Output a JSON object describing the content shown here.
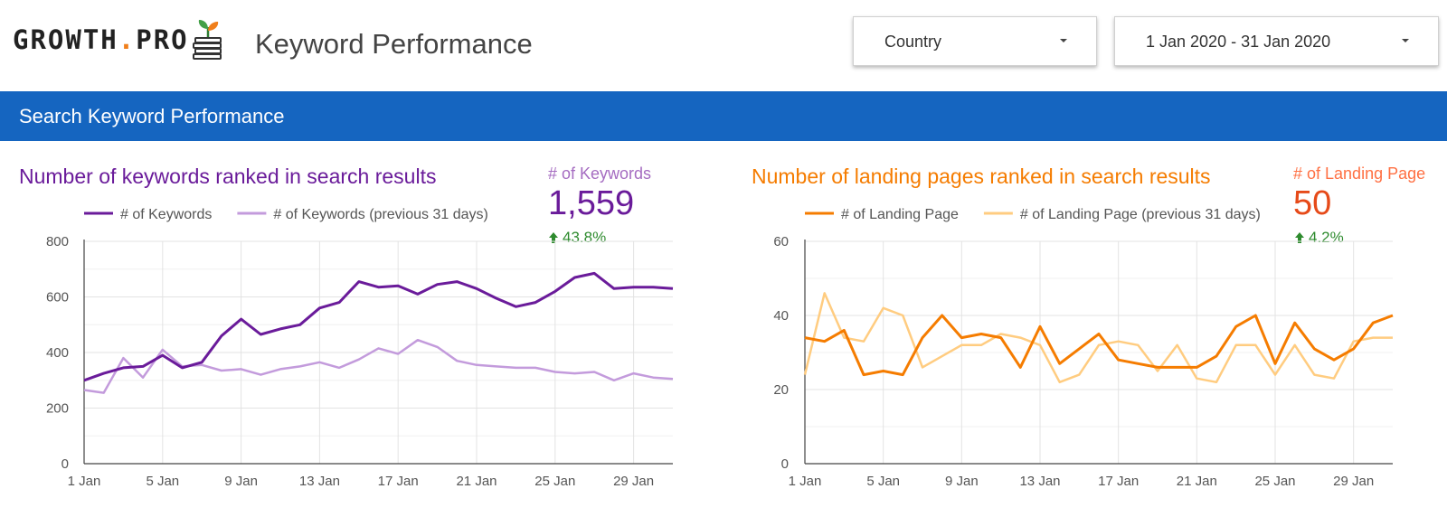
{
  "header": {
    "logo_main": "GROWTH",
    "logo_dot": ".",
    "logo_suffix": "PRO",
    "logo_icon": "plant-on-coins-icon",
    "title": "Keyword Performance",
    "country_filter": "Country",
    "date_range": "1 Jan 2020 - 31 Jan 2020"
  },
  "section": {
    "title": "Search Keyword Performance"
  },
  "kpis": [
    {
      "label": "# of Keywords",
      "value": "1,559",
      "delta": "43.8%",
      "color": "#6a1b9a"
    },
    {
      "label": "# of Landing Page",
      "value": "50",
      "delta": "4.2%",
      "color": "#e64a19"
    }
  ],
  "chart_data": [
    {
      "type": "line",
      "title": "Number of keywords ranked in search results",
      "x": [
        "1 Jan",
        "2 Jan",
        "3 Jan",
        "4 Jan",
        "5 Jan",
        "6 Jan",
        "7 Jan",
        "8 Jan",
        "9 Jan",
        "10 Jan",
        "11 Jan",
        "12 Jan",
        "13 Jan",
        "14 Jan",
        "15 Jan",
        "16 Jan",
        "17 Jan",
        "18 Jan",
        "19 Jan",
        "20 Jan",
        "21 Jan",
        "22 Jan",
        "23 Jan",
        "24 Jan",
        "25 Jan",
        "26 Jan",
        "27 Jan",
        "28 Jan",
        "29 Jan",
        "30 Jan",
        "31 Jan"
      ],
      "x_tick_labels": [
        "1 Jan",
        "5 Jan",
        "9 Jan",
        "13 Jan",
        "17 Jan",
        "21 Jan",
        "25 Jan",
        "29 Jan"
      ],
      "ylim": [
        0,
        800
      ],
      "y_ticks": [
        0,
        200,
        400,
        600,
        800
      ],
      "grid": true,
      "legend": "top-left",
      "series": [
        {
          "name": "# of Keywords",
          "color": "#6a1b9a",
          "values": [
            300,
            325,
            345,
            350,
            390,
            345,
            365,
            460,
            520,
            465,
            485,
            500,
            560,
            580,
            655,
            635,
            640,
            610,
            645,
            655,
            630,
            595,
            565,
            580,
            620,
            670,
            685,
            630,
            635,
            635,
            630
          ]
        },
        {
          "name": "# of Keywords (previous 31 days)",
          "color": "#c39bdc",
          "values": [
            265,
            255,
            380,
            310,
            410,
            350,
            355,
            335,
            340,
            320,
            340,
            350,
            365,
            345,
            375,
            415,
            395,
            445,
            420,
            370,
            355,
            350,
            345,
            345,
            330,
            325,
            330,
            300,
            325,
            310,
            305
          ]
        }
      ]
    },
    {
      "type": "line",
      "title": "Number of landing pages ranked in search results",
      "x": [
        "1 Jan",
        "2 Jan",
        "3 Jan",
        "4 Jan",
        "5 Jan",
        "6 Jan",
        "7 Jan",
        "8 Jan",
        "9 Jan",
        "10 Jan",
        "11 Jan",
        "12 Jan",
        "13 Jan",
        "14 Jan",
        "15 Jan",
        "16 Jan",
        "17 Jan",
        "18 Jan",
        "19 Jan",
        "20 Jan",
        "21 Jan",
        "22 Jan",
        "23 Jan",
        "24 Jan",
        "25 Jan",
        "26 Jan",
        "27 Jan",
        "28 Jan",
        "29 Jan",
        "30 Jan",
        "31 Jan"
      ],
      "x_tick_labels": [
        "1 Jan",
        "5 Jan",
        "9 Jan",
        "13 Jan",
        "17 Jan",
        "21 Jan",
        "25 Jan",
        "29 Jan"
      ],
      "ylim": [
        0,
        60
      ],
      "y_ticks": [
        0,
        20,
        40,
        60
      ],
      "grid": true,
      "legend": "top-left",
      "series": [
        {
          "name": "# of Landing Page",
          "color": "#f57c00",
          "values": [
            34,
            33,
            36,
            24,
            25,
            24,
            34,
            40,
            34,
            35,
            34,
            26,
            37,
            27,
            31,
            35,
            28,
            27,
            26,
            26,
            26,
            29,
            37,
            40,
            27,
            38,
            31,
            28,
            31,
            38,
            40
          ]
        },
        {
          "name": "# of Landing Page (previous 31 days)",
          "color": "#ffcc80",
          "values": [
            24,
            46,
            34,
            33,
            42,
            40,
            26,
            29,
            32,
            32,
            35,
            34,
            32,
            22,
            24,
            32,
            33,
            32,
            25,
            32,
            23,
            22,
            32,
            32,
            24,
            32,
            24,
            23,
            33,
            34,
            34
          ]
        }
      ]
    }
  ]
}
